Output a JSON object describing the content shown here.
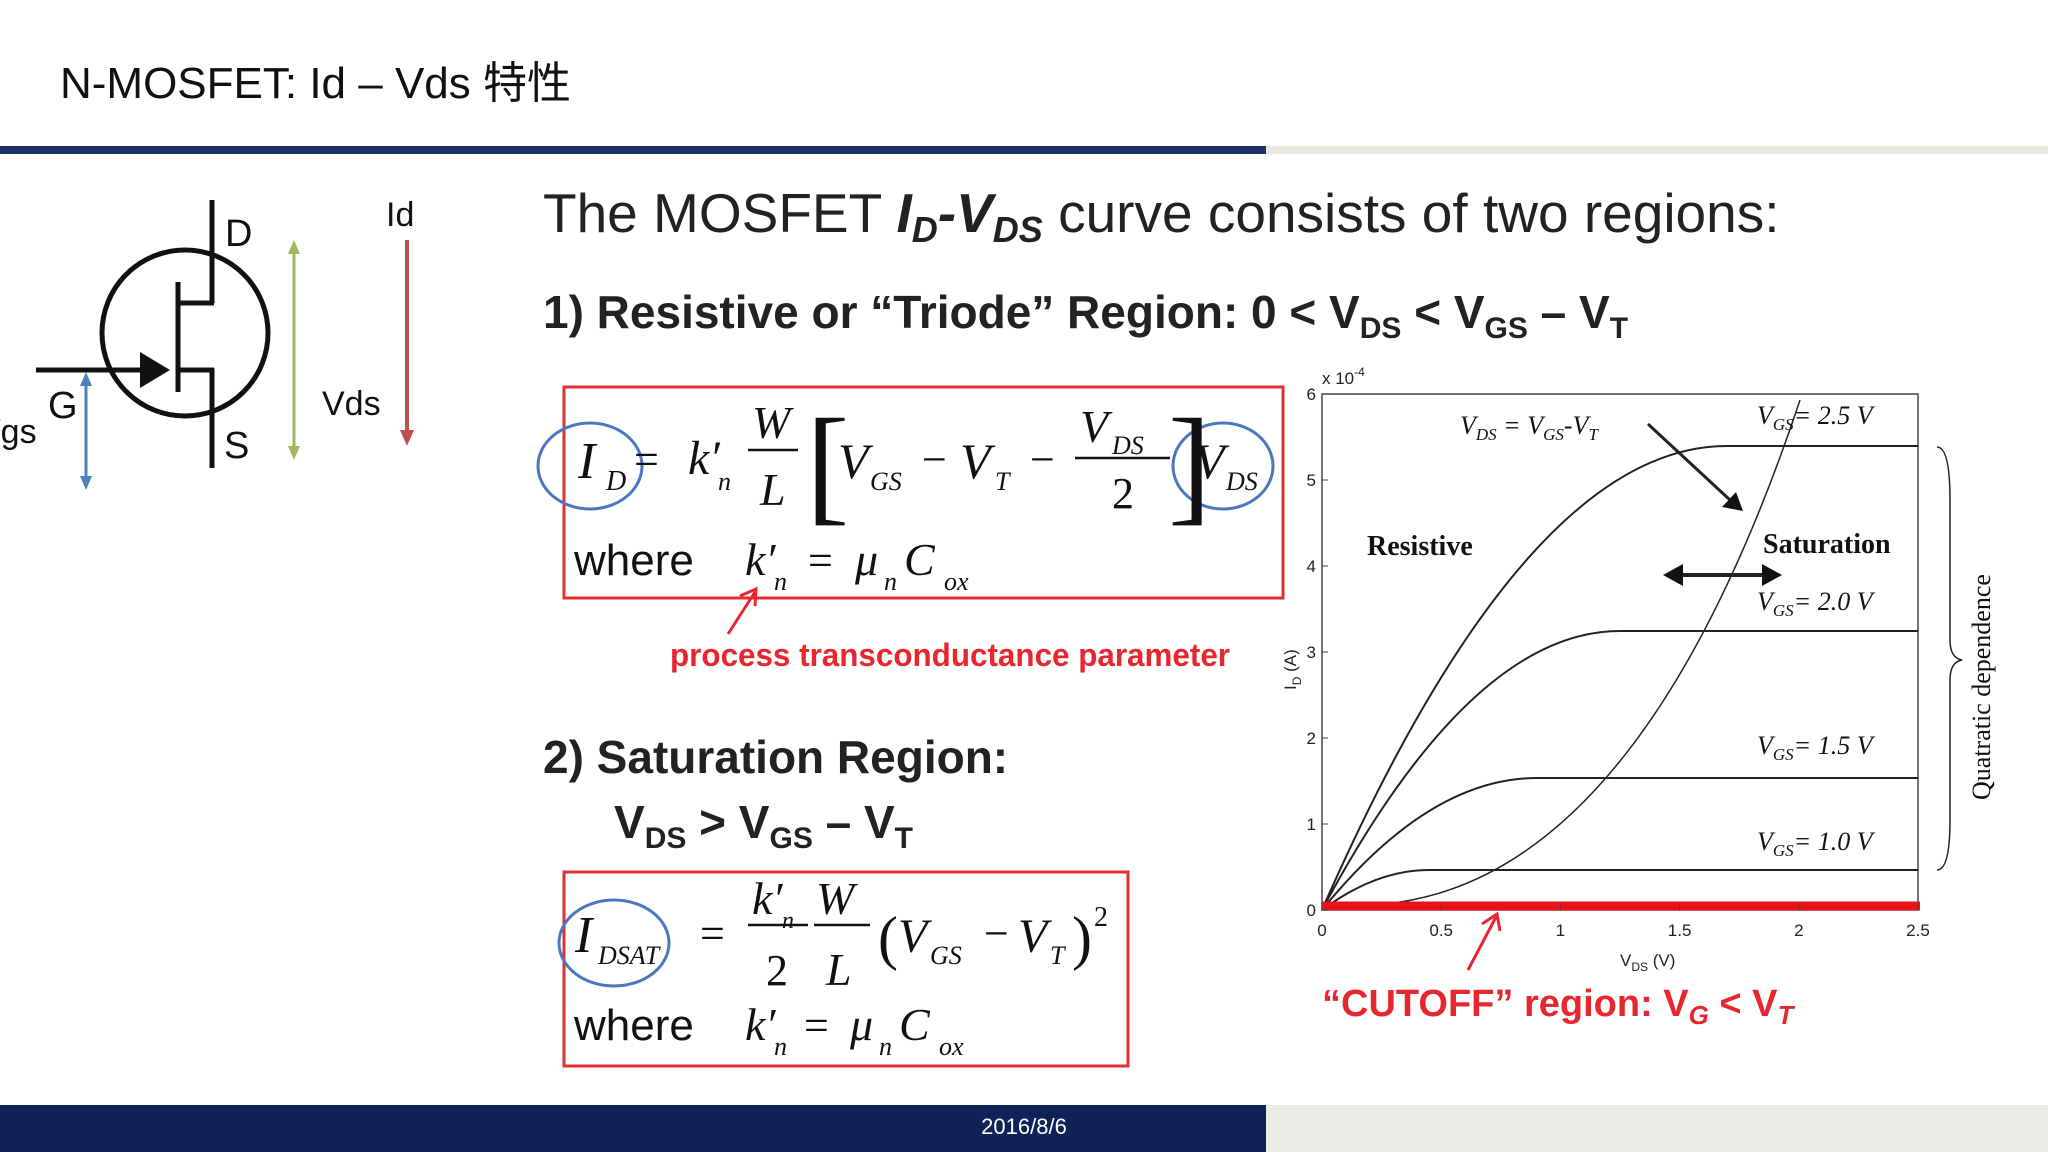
{
  "header": {
    "title": "N-MOSFET: Id – Vds 特性"
  },
  "symbol": {
    "drain": "D",
    "gate": "G",
    "source": "S",
    "vgs": "Vgs",
    "vds": "Vds",
    "id": "Id"
  },
  "heading": [
    "The MOSFET ",
    "I",
    "D",
    "-V",
    "DS",
    " curve consists of two regions:"
  ],
  "region1": {
    "title": [
      "1) Resistive or “Triode” Region: 0 < V",
      "DS",
      " < V",
      "GS",
      " – V",
      "T"
    ],
    "equation": [
      "I",
      "D",
      "=",
      "k′",
      "n",
      "W",
      "L",
      "[",
      "V",
      "GS",
      "−",
      "V",
      "T",
      "−",
      "V",
      "DS",
      "2",
      "]",
      "V",
      "DS"
    ],
    "where": [
      "where",
      "k′",
      "n",
      "=",
      "μ",
      "n",
      "C",
      "ox"
    ],
    "note": "process transconductance parameter"
  },
  "region2": {
    "title": "2) Saturation Region:",
    "condition": [
      "V",
      "DS",
      " > V",
      "GS",
      " – V",
      "T"
    ],
    "equation": [
      "I",
      "DSAT",
      "=",
      "k′",
      "n",
      "2",
      "W",
      "L",
      "(",
      "V",
      "GS",
      "−",
      "V",
      "T",
      ")",
      "2"
    ],
    "where": [
      "where",
      "k′",
      "n",
      "=",
      "μ",
      "n",
      "C",
      "ox"
    ]
  },
  "plot": {
    "multiplier": "x 10",
    "exponent": "-4",
    "y_label": [
      "I",
      "D",
      " (A)"
    ],
    "x_label": [
      "V",
      "DS",
      " (V)"
    ],
    "xticks": [
      "0",
      "0.5",
      "1",
      "1.5",
      "2",
      "2.5"
    ],
    "yticks": [
      "0",
      "1",
      "2",
      "3",
      "4",
      "5",
      "6"
    ],
    "boundary": [
      "V",
      "DS",
      " = V",
      "GS",
      "-V",
      "T"
    ],
    "curves": [
      [
        "V",
        "GS",
        "= 2.5 V"
      ],
      [
        "V",
        "GS",
        "= 2.0 V"
      ],
      [
        "V",
        "GS",
        "= 1.5 V"
      ],
      [
        "V",
        "GS",
        "= 1.0 V"
      ]
    ],
    "resistive": "Resistive",
    "saturation": "Saturation",
    "brace": "Quatratic dependence",
    "cutoff": [
      "“CUTOFF” region: V",
      "G",
      " < V",
      "T"
    ]
  },
  "footer": {
    "date": "2016/8/6"
  }
}
